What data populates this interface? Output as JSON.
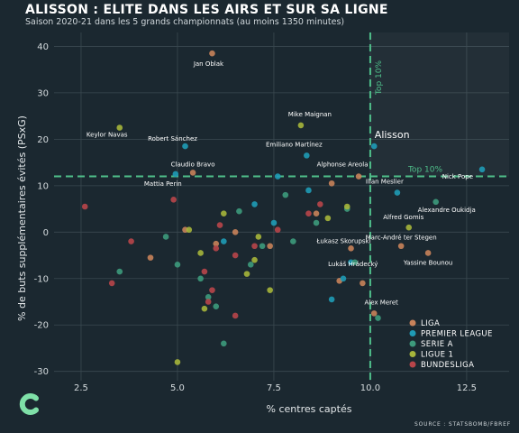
{
  "title": "ALISSON : ELITE DANS LES AIRS ET SUR SA LIGNE",
  "subtitle": "Saison 2020-21 dans les 5 grands championnats (au moins 1350 minutes)",
  "source": "SOURCE : STATSBOMB/FBREF",
  "colors": {
    "LIGA": "#c8825a",
    "PREMIER LEAGUE": "#1f9bb6",
    "SERIE A": "#3d9a7c",
    "LIGUE 1": "#a6b53b",
    "BUNDESLIGA": "#b8454a",
    "threshold": "#4fbf8a",
    "background": "#1b2830"
  },
  "logo_icon": "c-logo-icon",
  "chart_data": {
    "type": "scatter",
    "title": "ALISSON : ELITE DANS LES AIRS ET SUR SA LIGNE",
    "subtitle": "Saison 2020-21 dans les 5 grands championnats (au moins 1350 minutes)",
    "xlabel": "% centres captés",
    "ylabel": "% de buts supplémentaires évités (PSxG)",
    "xlim": [
      1.8,
      13.6
    ],
    "ylim": [
      -32,
      43
    ],
    "xticks": [
      2.5,
      5.0,
      7.5,
      10.0,
      12.5
    ],
    "xtick_labels": [
      "2.5",
      "5.0",
      "7.5",
      "10.0",
      "12.5"
    ],
    "yticks": [
      -30,
      -20,
      -10,
      0,
      10,
      20,
      30,
      40
    ],
    "ytick_labels": [
      "-30",
      "-20",
      "-10",
      "0",
      "10",
      "20",
      "30",
      "40"
    ],
    "grid": true,
    "legend_position": "bottom-right",
    "thresholds": {
      "x": 10.0,
      "y": 12.0,
      "x_label": "Top 10%",
      "y_label": "Top 10%"
    },
    "series": [
      {
        "name": "LIGA",
        "points": [
          {
            "x": 5.9,
            "y": 38.5,
            "label": "Jan Oblak"
          },
          {
            "x": 5.4,
            "y": 12.8,
            "label": "Claudio Bravo"
          },
          {
            "x": 9.7,
            "y": 12.0,
            "label": "Alphonse Areola"
          },
          {
            "x": 10.8,
            "y": -3.0,
            "label": "Marc-André ter Stegen"
          },
          {
            "x": 11.5,
            "y": -4.5,
            "label": "Yassine Bounou"
          },
          {
            "x": 9.5,
            "y": -3.5,
            "label": "Łukasz Skorupski"
          },
          {
            "x": 10.1,
            "y": -17.5,
            "label": "Alex Meret"
          },
          {
            "x": 5.2,
            "y": 0.5,
            "label": ""
          },
          {
            "x": 6.5,
            "y": 0.0,
            "label": ""
          },
          {
            "x": 7.4,
            "y": -3.0,
            "label": ""
          },
          {
            "x": 9.2,
            "y": -10.5,
            "label": ""
          },
          {
            "x": 9.8,
            "y": -11.0,
            "label": ""
          },
          {
            "x": 4.3,
            "y": -5.5,
            "label": ""
          },
          {
            "x": 6.0,
            "y": -2.5,
            "label": ""
          },
          {
            "x": 8.6,
            "y": 4.0,
            "label": ""
          },
          {
            "x": 9.0,
            "y": 10.5,
            "label": ""
          }
        ]
      },
      {
        "name": "PREMIER LEAGUE",
        "points": [
          {
            "x": 5.2,
            "y": 18.5,
            "label": "Robert Sánchez"
          },
          {
            "x": 4.95,
            "y": 12.5,
            "label": "Mattia Perin"
          },
          {
            "x": 8.35,
            "y": 16.5,
            "label": "Emiliano Martínez"
          },
          {
            "x": 10.1,
            "y": 18.5,
            "label": "Alisson"
          },
          {
            "x": 10.7,
            "y": 8.5,
            "label": "Illan Meslier"
          },
          {
            "x": 12.9,
            "y": 13.5,
            "label": "Nick Pope"
          },
          {
            "x": 9.5,
            "y": -6.5,
            "label": ""
          },
          {
            "x": 9.3,
            "y": -10.0,
            "label": ""
          },
          {
            "x": 9.0,
            "y": -14.5,
            "label": ""
          },
          {
            "x": 8.4,
            "y": 9.0,
            "label": ""
          },
          {
            "x": 7.6,
            "y": 12.0,
            "label": ""
          },
          {
            "x": 7.5,
            "y": 2.0,
            "label": ""
          },
          {
            "x": 6.2,
            "y": -2.0,
            "label": ""
          },
          {
            "x": 7.0,
            "y": 6.0,
            "label": ""
          }
        ]
      },
      {
        "name": "SERIE A",
        "points": [
          {
            "x": 11.7,
            "y": 6.5,
            "label": "Alexandre Oukidja"
          },
          {
            "x": 9.6,
            "y": -6.5,
            "label": "Lukáš Hrádecký"
          },
          {
            "x": 10.2,
            "y": -18.5,
            "label": ""
          },
          {
            "x": 3.5,
            "y": -8.5,
            "label": ""
          },
          {
            "x": 5.0,
            "y": -7.0,
            "label": ""
          },
          {
            "x": 5.8,
            "y": -14.0,
            "label": ""
          },
          {
            "x": 6.0,
            "y": -16.0,
            "label": ""
          },
          {
            "x": 6.2,
            "y": -24.0,
            "label": ""
          },
          {
            "x": 5.6,
            "y": -10.0,
            "label": ""
          },
          {
            "x": 6.9,
            "y": -7.0,
            "label": ""
          },
          {
            "x": 7.2,
            "y": -3.0,
            "label": ""
          },
          {
            "x": 8.0,
            "y": -2.0,
            "label": ""
          },
          {
            "x": 8.6,
            "y": 2.0,
            "label": ""
          },
          {
            "x": 9.4,
            "y": 5.0,
            "label": ""
          },
          {
            "x": 4.7,
            "y": -1.0,
            "label": ""
          },
          {
            "x": 6.6,
            "y": 4.5,
            "label": ""
          },
          {
            "x": 7.8,
            "y": 8.0,
            "label": ""
          }
        ]
      },
      {
        "name": "LIGUE 1",
        "points": [
          {
            "x": 3.5,
            "y": 22.5,
            "label": "Keylor Navas"
          },
          {
            "x": 8.2,
            "y": 23.0,
            "label": "Mike Maignan"
          },
          {
            "x": 11.0,
            "y": 1.0,
            "label": "Alfred Gomis"
          },
          {
            "x": 5.0,
            "y": -28.0,
            "label": ""
          },
          {
            "x": 5.3,
            "y": 0.5,
            "label": ""
          },
          {
            "x": 5.6,
            "y": -4.5,
            "label": ""
          },
          {
            "x": 5.7,
            "y": -16.5,
            "label": ""
          },
          {
            "x": 6.2,
            "y": 4.0,
            "label": ""
          },
          {
            "x": 6.8,
            "y": -9.0,
            "label": ""
          },
          {
            "x": 7.0,
            "y": -6.0,
            "label": ""
          },
          {
            "x": 7.4,
            "y": -12.5,
            "label": ""
          },
          {
            "x": 8.9,
            "y": 3.0,
            "label": ""
          },
          {
            "x": 9.4,
            "y": 5.5,
            "label": ""
          },
          {
            "x": 7.1,
            "y": -1.0,
            "label": ""
          }
        ]
      },
      {
        "name": "BUNDESLIGA",
        "points": [
          {
            "x": 2.6,
            "y": 5.5,
            "label": ""
          },
          {
            "x": 3.3,
            "y": -11.0,
            "label": ""
          },
          {
            "x": 3.8,
            "y": -2.0,
            "label": ""
          },
          {
            "x": 4.9,
            "y": 7.0,
            "label": ""
          },
          {
            "x": 5.7,
            "y": -8.5,
            "label": ""
          },
          {
            "x": 5.9,
            "y": -12.5,
            "label": ""
          },
          {
            "x": 6.0,
            "y": -3.5,
            "label": ""
          },
          {
            "x": 6.5,
            "y": -5.0,
            "label": ""
          },
          {
            "x": 6.5,
            "y": -18.0,
            "label": ""
          },
          {
            "x": 5.8,
            "y": -15.0,
            "label": ""
          },
          {
            "x": 7.6,
            "y": 0.5,
            "label": ""
          },
          {
            "x": 8.4,
            "y": 4.0,
            "label": ""
          },
          {
            "x": 8.7,
            "y": 6.0,
            "label": ""
          },
          {
            "x": 7.0,
            "y": -3.0,
            "label": ""
          },
          {
            "x": 6.1,
            "y": 1.5,
            "label": ""
          }
        ]
      }
    ]
  }
}
